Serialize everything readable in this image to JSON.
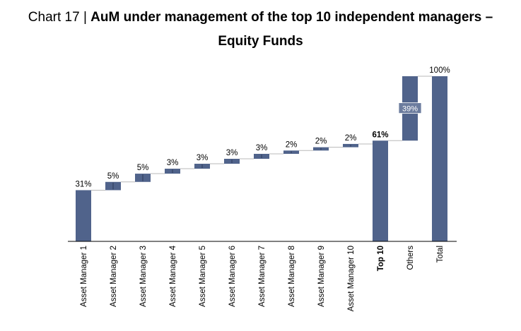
{
  "title": {
    "prefix": "Chart 17 | ",
    "line1": "AuM under management of the top 10 independent managers –",
    "line2": "Equity Funds"
  },
  "colors": {
    "bar": "#50638b",
    "white_label_bg": "#50638b",
    "axis": "#000000",
    "connector": "#b8b8b8"
  },
  "chart_data": {
    "type": "bar",
    "subtype": "waterfall",
    "unit": "%",
    "categories": [
      "Asset Manager 1",
      "Asset Manager 2",
      "Asset Manager 3",
      "Asset Manager 4",
      "Asset Manager 5",
      "Asset Manager 6",
      "Asset Manager 7",
      "Asset Manager 8",
      "Asset Manager 9",
      "Asset Manager 10",
      "Top 10",
      "Others",
      "Total"
    ],
    "values": [
      31,
      5,
      5,
      3,
      3,
      3,
      3,
      2,
      2,
      2,
      61,
      39,
      100
    ],
    "labels": [
      "31%",
      "5%",
      "5%",
      "3%",
      "3%",
      "3%",
      "3%",
      "2%",
      "2%",
      "2%",
      "61%",
      "39%",
      "100%"
    ],
    "bar_kind": [
      "start",
      "increment",
      "increment",
      "increment",
      "increment",
      "increment",
      "increment",
      "increment",
      "increment",
      "increment",
      "subtotal",
      "increment",
      "total"
    ],
    "bold_categories": [
      "Top 10"
    ],
    "label_inside": [
      "Others"
    ],
    "ylim": [
      0,
      100
    ],
    "grid": false,
    "legend": "none"
  }
}
